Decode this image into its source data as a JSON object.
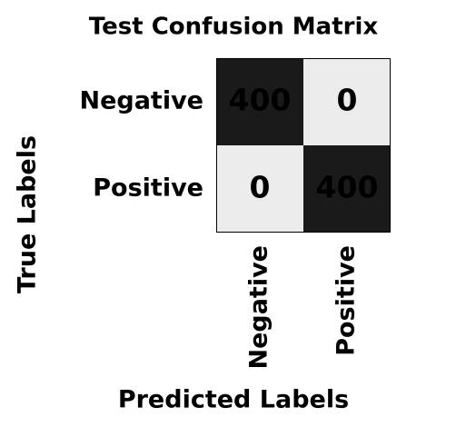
{
  "chart_data": {
    "type": "heatmap",
    "title": "Test Confusion Matrix",
    "xlabel": "Predicted Labels",
    "ylabel": "True Labels",
    "row_labels": [
      "Negative",
      "Positive"
    ],
    "col_labels": [
      "Negative",
      "Positive"
    ],
    "values": [
      [
        400,
        0
      ],
      [
        0,
        400
      ]
    ],
    "value_range": [
      0,
      400
    ],
    "colors": {
      "low": "#ececec",
      "high": "#1a1a1a",
      "text_on_dark": "#ffffff",
      "text_on_light": "#000000",
      "border": "#000000"
    },
    "grid": false,
    "legend": "none"
  }
}
